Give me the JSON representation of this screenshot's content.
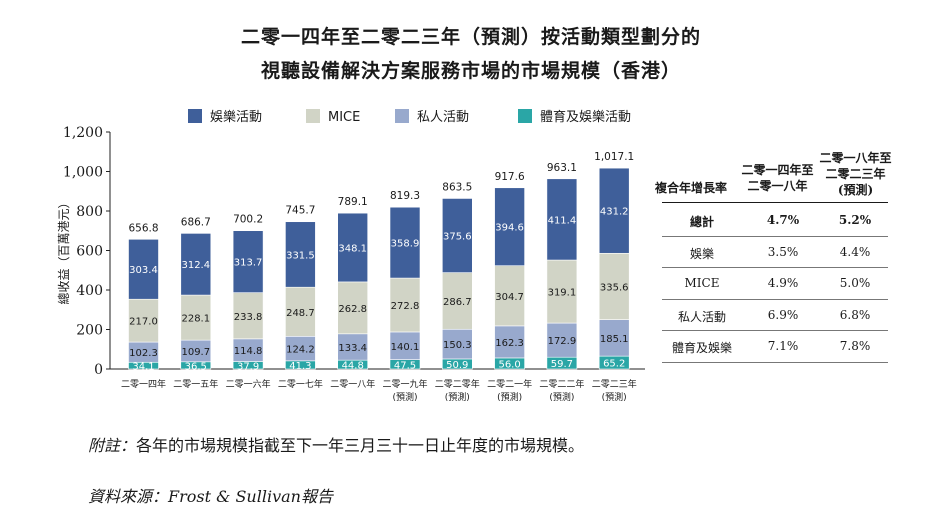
{
  "title": {
    "line1": "二零一四年至二零二三年（預測）按活動類型劃分的",
    "line2": "視聽設備解決方案服務市場的市場規模（香港）"
  },
  "colors": {
    "entertainment": "#3f5f9a",
    "mice": "#d1d4c6",
    "private": "#98a9cd",
    "sports": "#2aa6a6"
  },
  "chart_data": {
    "type": "bar",
    "stacked": true,
    "categories": [
      "二零一四年",
      "二零一五年",
      "二零一六年",
      "二零一七年",
      "二零一八年",
      "二零一九年",
      "二零二零年",
      "二零二一年",
      "二零二二年",
      "二零二三年"
    ],
    "category_notes": [
      "",
      "",
      "",
      "",
      "",
      "(預測)",
      "(預測)",
      "(預測)",
      "(預測)",
      "(預測)"
    ],
    "series": [
      {
        "name": "體育及娛樂活動",
        "color": "#2aa6a6",
        "values": [
          34.1,
          36.5,
          37.9,
          41.3,
          44.8,
          47.5,
          50.9,
          56.0,
          59.7,
          65.2
        ]
      },
      {
        "name": "私人活動",
        "color": "#98a9cd",
        "values": [
          102.3,
          109.7,
          114.8,
          124.2,
          133.4,
          140.1,
          150.3,
          162.3,
          172.9,
          185.1
        ]
      },
      {
        "name": "MICE",
        "color": "#d1d4c6",
        "values": [
          217.0,
          228.1,
          233.8,
          248.7,
          262.8,
          272.8,
          286.7,
          304.7,
          319.1,
          335.6
        ]
      },
      {
        "name": "娛樂活動",
        "color": "#3f5f9a",
        "values": [
          303.4,
          312.4,
          313.7,
          331.5,
          348.1,
          358.9,
          375.6,
          394.6,
          411.4,
          431.2
        ]
      }
    ],
    "totals": [
      "656.8",
      "686.7",
      "700.2",
      "745.7",
      "789.1",
      "819.3",
      "863.5",
      "917.6",
      "963.1",
      "1,017.1"
    ],
    "legend": [
      "娛樂活動",
      "MICE",
      "私人活動",
      "體育及娛樂活動"
    ],
    "ylabel": "總收益（百萬港元）",
    "ylim": [
      0,
      1200
    ],
    "yticks": [
      "0",
      "200",
      "400",
      "600",
      "800",
      "1,000",
      "1,200"
    ]
  },
  "cagr_table": {
    "header_label": "複合年增長率",
    "col1": [
      "二零一四年至",
      "二零一八年"
    ],
    "col2": [
      "二零一八年至",
      "二零二三年",
      "(預測)"
    ],
    "rows": [
      {
        "label": "總計",
        "v1": "4.7%",
        "v2": "5.2%",
        "bold": true
      },
      {
        "label": "娛樂",
        "v1": "3.5%",
        "v2": "4.4%",
        "bold": false
      },
      {
        "label": "MICE",
        "v1": "4.9%",
        "v2": "5.0%",
        "bold": false
      },
      {
        "label": "私人活動",
        "v1": "6.9%",
        "v2": "6.8%",
        "bold": false
      },
      {
        "label": "體育及娛樂",
        "v1": "7.1%",
        "v2": "7.8%",
        "bold": false
      }
    ]
  },
  "notes": {
    "note_label": "附註：",
    "note_text": "各年的市場規模指截至下一年三月三十一日止年度的市場規模。",
    "source_label": "資料來源：",
    "source_text": "Frost & Sullivan報告"
  }
}
